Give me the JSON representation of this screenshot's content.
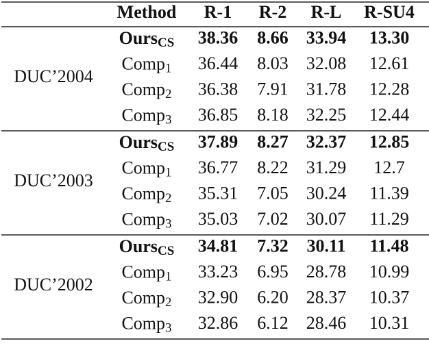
{
  "table": {
    "header": [
      "Method",
      "R-1",
      "R-2",
      "R-L",
      "R-SU4"
    ],
    "groups": [
      {
        "label": "DUC’2004",
        "rows": [
          {
            "method": {
              "name": "Ours",
              "sub": "CS"
            },
            "values": [
              "38.36",
              "8.66",
              "33.94",
              "13.30"
            ]
          },
          {
            "method": {
              "name": "Comp",
              "sub": "1"
            },
            "values": [
              "36.44",
              "8.03",
              "32.08",
              "12.61"
            ]
          },
          {
            "method": {
              "name": "Comp",
              "sub": "2"
            },
            "values": [
              "36.38",
              "7.91",
              "31.78",
              "12.28"
            ]
          },
          {
            "method": {
              "name": "Comp",
              "sub": "3"
            },
            "values": [
              "36.85",
              "8.18",
              "32.25",
              "12.44"
            ]
          }
        ]
      },
      {
        "label": "DUC’2003",
        "rows": [
          {
            "method": {
              "name": "Ours",
              "sub": "CS"
            },
            "values": [
              "37.89",
              "8.27",
              "32.37",
              "12.85"
            ]
          },
          {
            "method": {
              "name": "Comp",
              "sub": "1"
            },
            "values": [
              "36.77",
              "8.22",
              "31.29",
              "12.7"
            ]
          },
          {
            "method": {
              "name": "Comp",
              "sub": "2"
            },
            "values": [
              "35.31",
              "7.05",
              "30.24",
              "11.39"
            ]
          },
          {
            "method": {
              "name": "Comp",
              "sub": "3"
            },
            "values": [
              "35.03",
              "7.02",
              "30.07",
              "11.29"
            ]
          }
        ]
      },
      {
        "label": "DUC’2002",
        "rows": [
          {
            "method": {
              "name": "Ours",
              "sub": "CS"
            },
            "values": [
              "34.81",
              "7.32",
              "30.11",
              "11.48"
            ]
          },
          {
            "method": {
              "name": "Comp",
              "sub": "1"
            },
            "values": [
              "33.23",
              "6.95",
              "28.78",
              "10.99"
            ]
          },
          {
            "method": {
              "name": "Comp",
              "sub": "2"
            },
            "values": [
              "32.90",
              "6.20",
              "28.37",
              "10.37"
            ]
          },
          {
            "method": {
              "name": "Comp",
              "sub": "3"
            },
            "values": [
              "32.86",
              "6.12",
              "28.46",
              "10.31"
            ]
          }
        ]
      }
    ]
  }
}
